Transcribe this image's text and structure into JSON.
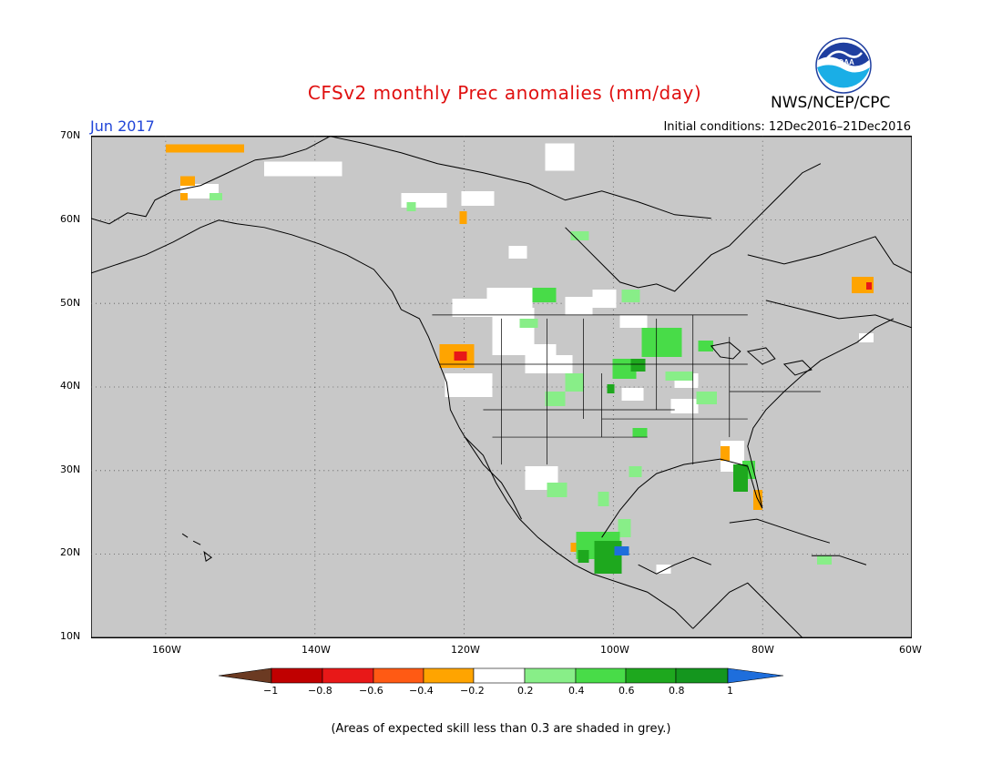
{
  "header": {
    "title": "CFSv2 monthly Prec anomalies (mm/day)",
    "agency": "NWS/NCEP/CPC",
    "logo_text": "NOAA",
    "month": "Jun 2017",
    "initial_conditions": "Initial conditions: 12Dec2016–21Dec2016"
  },
  "map": {
    "region": "North America",
    "lat_range": [
      10,
      70
    ],
    "lon_range": [
      -170,
      -60
    ],
    "lat_labels": [
      "70N",
      "60N",
      "50N",
      "40N",
      "30N",
      "20N",
      "10N"
    ],
    "lon_labels": [
      "160W",
      "140W",
      "120W",
      "100W",
      "80W",
      "60W"
    ],
    "background_color": "#c8c8c8",
    "gridlines": true
  },
  "colorbar": {
    "labels": [
      "−1",
      "−0.8",
      "−0.6",
      "−0.4",
      "−0.2",
      "0.2",
      "0.4",
      "0.6",
      "0.8",
      "1"
    ],
    "colors": [
      "#6b3a22",
      "#c00000",
      "#e81818",
      "#ff5a14",
      "#ffa400",
      "#ffffff",
      "#88ee88",
      "#48dc48",
      "#1ea81e",
      "#14961e",
      "#1e6edc"
    ]
  },
  "footnote": "(Areas of expected skill less than 0.3 are shaded in grey.)"
}
